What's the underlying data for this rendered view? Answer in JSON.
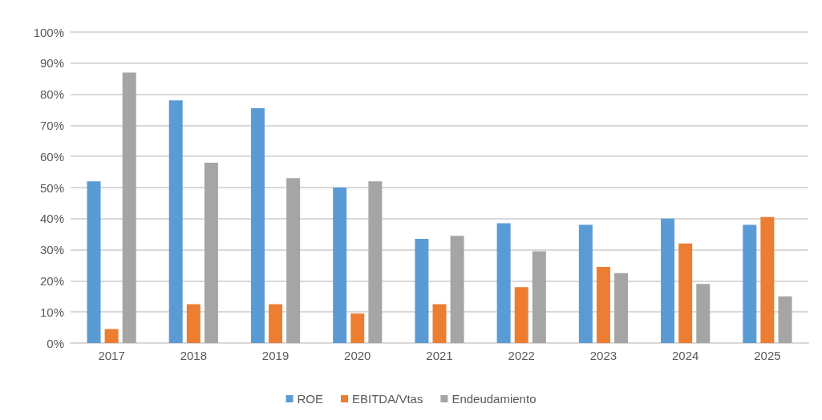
{
  "chart_data": {
    "type": "bar",
    "categories": [
      "2017",
      "2018",
      "2019",
      "2020",
      "2021",
      "2022",
      "2023",
      "2024",
      "2025"
    ],
    "series": [
      {
        "name": "ROE",
        "color": "#5b9bd5",
        "values": [
          52,
          78,
          75.5,
          50,
          33.5,
          38.5,
          38,
          40,
          38
        ]
      },
      {
        "name": "EBITDA/Vtas",
        "color": "#ed7d31",
        "values": [
          4.5,
          12.5,
          12.5,
          9.5,
          12.5,
          18,
          24.5,
          32,
          40.5
        ]
      },
      {
        "name": "Endeudamiento",
        "color": "#a5a5a5",
        "values": [
          87,
          58,
          53,
          52,
          34.5,
          29.5,
          22.5,
          19,
          15
        ]
      }
    ],
    "ylim": [
      0,
      100
    ],
    "yticks": [
      {
        "value": 0,
        "label": "0%"
      },
      {
        "value": 10,
        "label": "10%"
      },
      {
        "value": 20,
        "label": "20%"
      },
      {
        "value": 30,
        "label": "30%"
      },
      {
        "value": 40,
        "label": "40%"
      },
      {
        "value": 50,
        "label": "50%"
      },
      {
        "value": 60,
        "label": "60%"
      },
      {
        "value": 70,
        "label": "70%"
      },
      {
        "value": 80,
        "label": "80%"
      },
      {
        "value": 90,
        "label": "90%"
      },
      {
        "value": 100,
        "label": "100%"
      }
    ],
    "grid": "y",
    "legend": "bottom"
  }
}
